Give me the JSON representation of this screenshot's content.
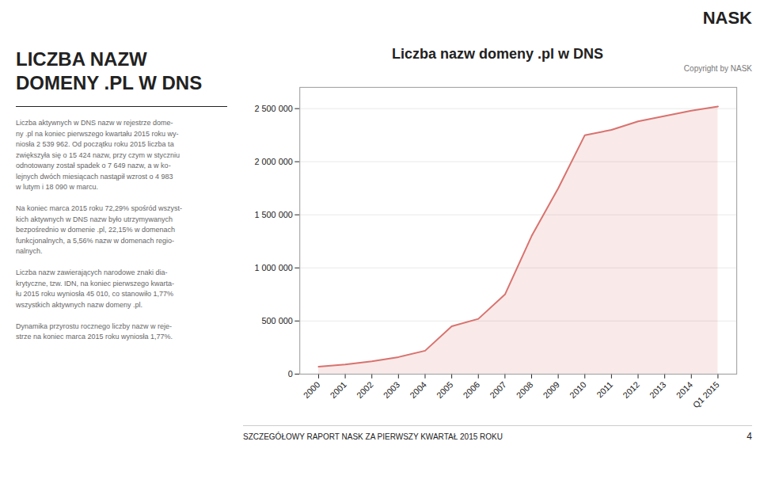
{
  "chart_data": {
    "type": "area",
    "title": "Liczba nazw domeny .pl w DNS",
    "annotations": [
      "LICZBA NAZW",
      "DOMENY .PL W DNS",
      "Liczba aktywnych w DNS nazw w rejestrze dome-\nny .pl na koniec pierwszego kwartału 2015 roku wy-\nniosła 2 539 962. Od początku roku 2015 liczba ta\nzwiększyła się o 15 424 nazw, przy czym w styczniu\nodnotowany został spadek o 7 649 nazw, a w ko-\nlejnych dwóch miesiącach nastąpił wzrost o 4 983\nw lutym i 18 090 w marcu.\n\nNa koniec marca 2015 roku 72,29% spośród wszyst-\nkich aktywnych w DNS nazw było utrzymywanych\nbezpośrednio w domenie .pl, 22,15% w domenach\nfunkcjonalnych, a 5,56% nazw w domenach regio-\nnalnych.\n\nLiczba nazw zawierających narodowe znaki dia-\nkrytyczne, tzw. IDN, na koniec pierwszego kwarta-\nłu 2015 roku wyniosła 45 010, co stanowiło 1,77%\nwszystkich aktywnych nazw domeny .pl.\n\nDynamika przyrostu rocznego liczby nazw w reje-\nstrze na koniec marca 2015 roku wyniosła 1,77%.",
      "NASK",
      "Copyright by NASK",
      "SZCZEGÓŁOWY RAPORT NASK ZA PIERWSZY KWARTAŁ 2015 ROKU",
      "4"
    ],
    "categories": [
      "2000",
      "2001",
      "2002",
      "2003",
      "2004",
      "2005",
      "2006",
      "2007",
      "2008",
      "2009",
      "2010",
      "2011",
      "2012",
      "2013",
      "2014",
      "Q1 2015"
    ],
    "values": [
      70000,
      90000,
      120000,
      160000,
      220000,
      450000,
      520000,
      750000,
      1300000,
      1750000,
      2250000,
      2300000,
      2380000,
      2430000,
      2480000,
      2520000
    ],
    "color": "#d9726e",
    "ylim": [
      0,
      2700000
    ],
    "yticks": [
      0,
      {
        "value": 500000,
        "label": "500 000"
      },
      {
        "value": 1000000,
        "label": "1 000 000"
      },
      {
        "value": 1500000,
        "label": "1 500 000"
      },
      {
        "value": 2000000,
        "label": "2 000 000"
      },
      {
        "value": 2500000,
        "label": "2 500 000"
      }
    ],
    "grid": true
  }
}
